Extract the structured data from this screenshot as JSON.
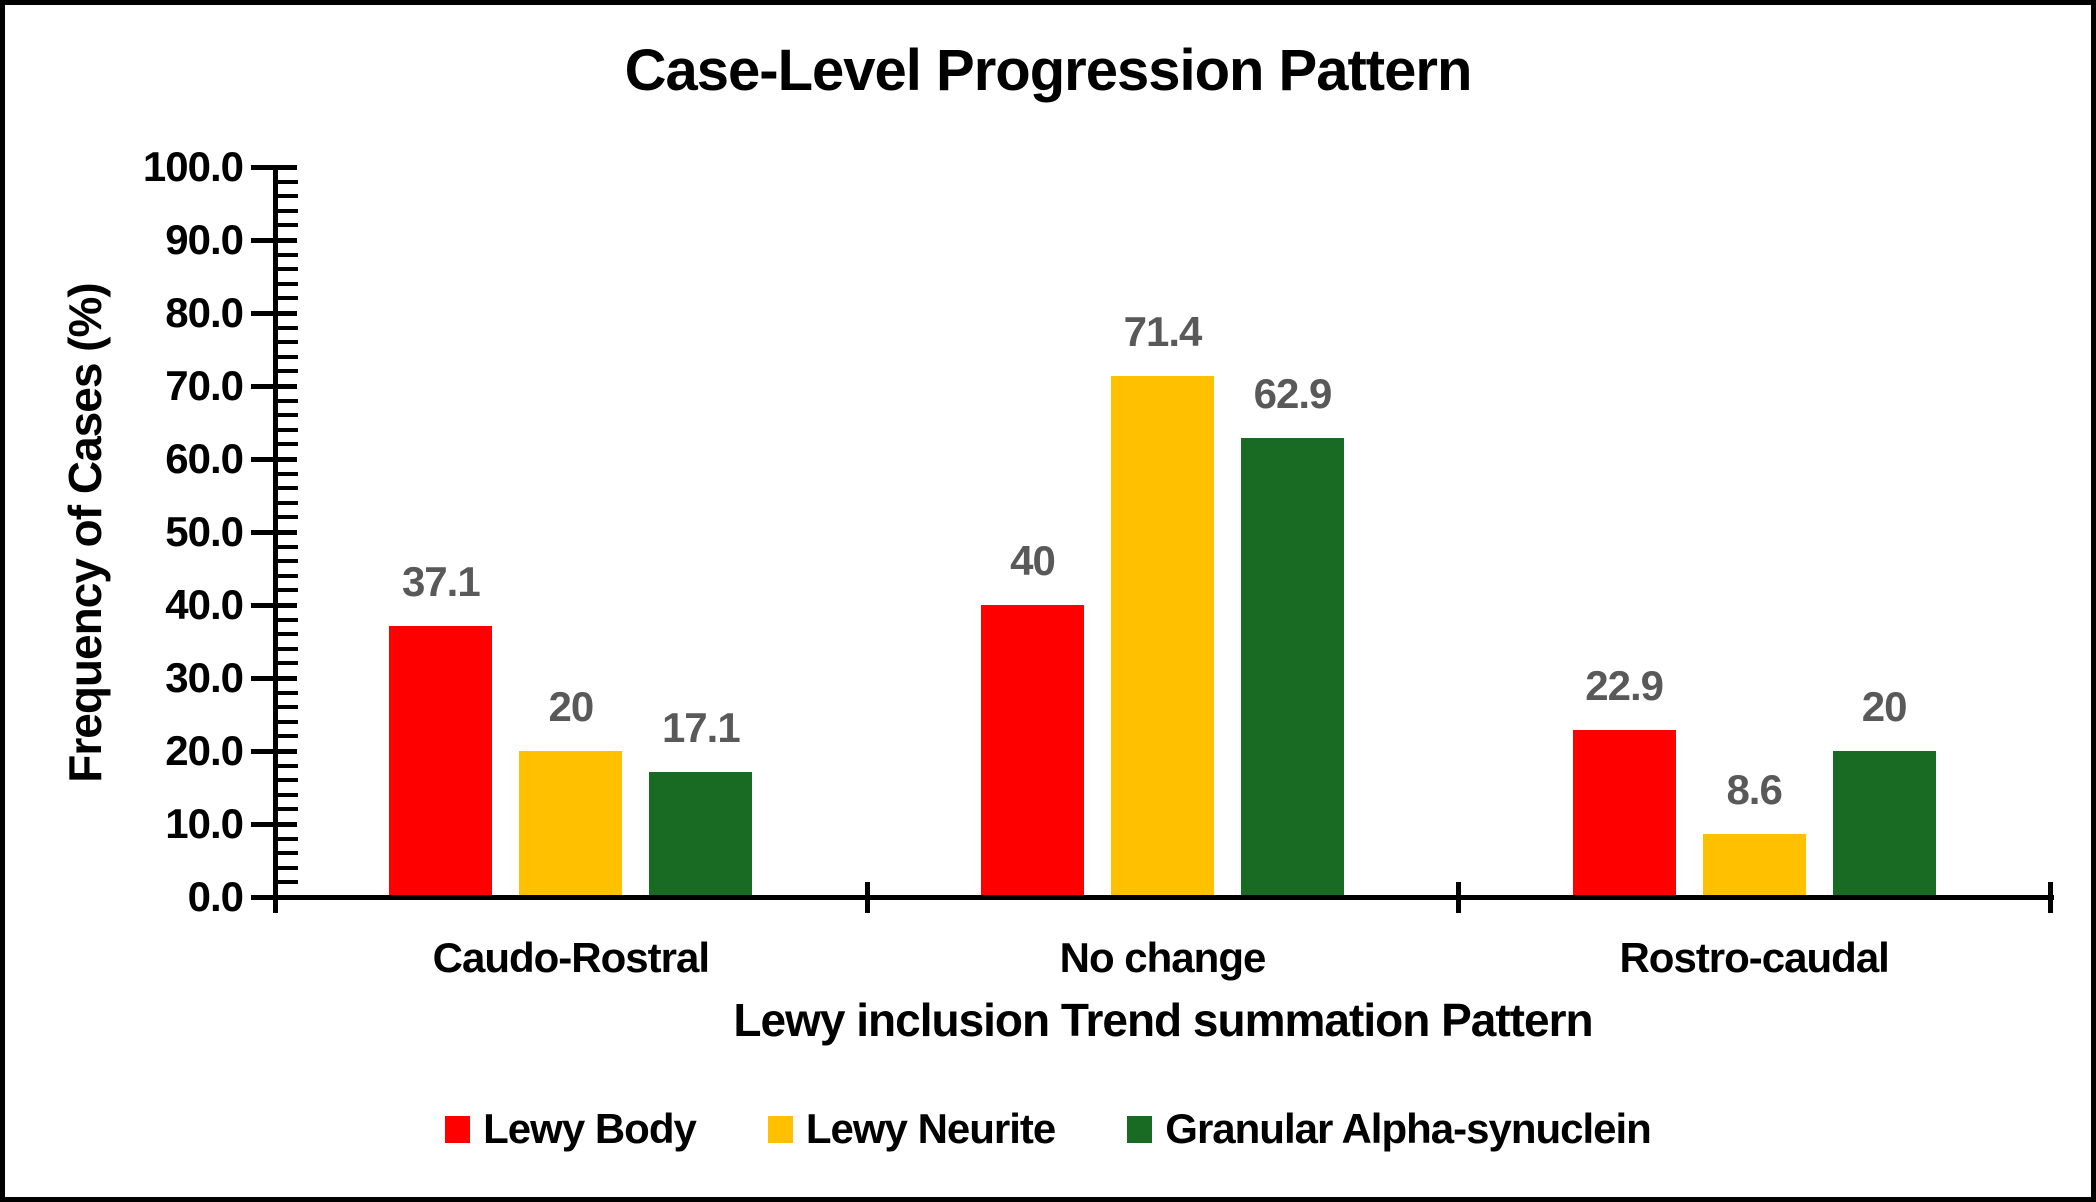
{
  "title": "Case-Level Progression Pattern",
  "chart_data": {
    "type": "bar",
    "title": "Case-Level Progression Pattern",
    "categories": [
      "Caudo-Rostral",
      "No change",
      "Rostro-caudal"
    ],
    "series": [
      {
        "name": "Lewy Body",
        "color": "#FF0000",
        "values": [
          37.1,
          40,
          22.9
        ],
        "labels": [
          "37.1",
          "40",
          "22.9"
        ]
      },
      {
        "name": "Lewy Neurite",
        "color": "#FFC000",
        "values": [
          20,
          71.4,
          8.6
        ],
        "labels": [
          "20",
          "71.4",
          "8.6"
        ]
      },
      {
        "name": "Granular Alpha-synuclein",
        "color": "#196B24",
        "values": [
          17.1,
          62.9,
          20
        ],
        "labels": [
          "17.1",
          "62.9",
          "20"
        ]
      }
    ],
    "xlabel": "Lewy inclusion Trend summation Pattern",
    "ylabel": "Frequency of Cases (%)",
    "ylim": [
      0,
      100
    ],
    "y_major_step": 10,
    "y_minor_step": 2,
    "y_tick_labels": [
      "0.0",
      "10.0",
      "20.0",
      "30.0",
      "40.0",
      "50.0",
      "60.0",
      "70.0",
      "80.0",
      "90.0",
      "100.0"
    ],
    "grid": false,
    "legend_position": "bottom",
    "value_label_color": "#595959",
    "axis_color": "#000000",
    "background_color": "#FFFFFF"
  }
}
